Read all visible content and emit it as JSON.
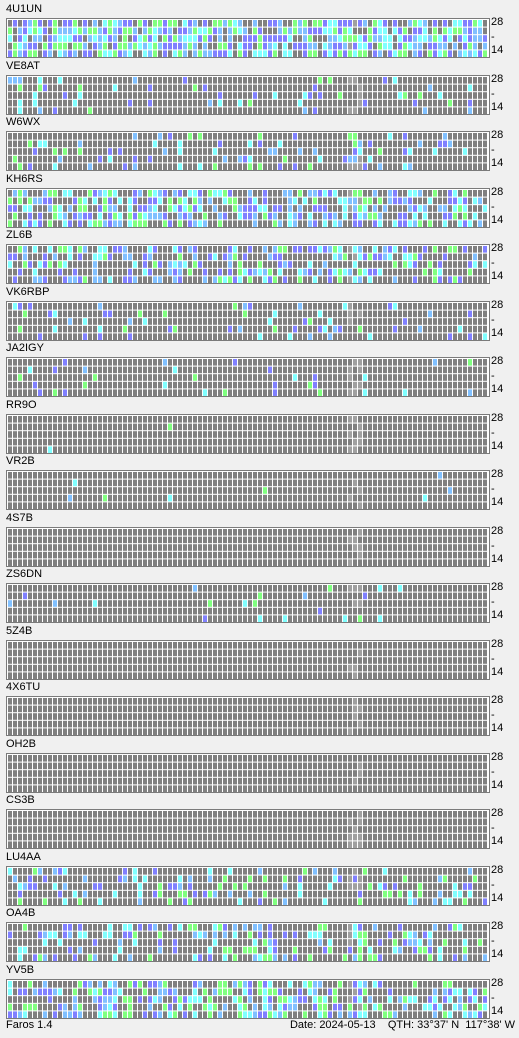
{
  "app": {
    "version_label": "Faros 1.4"
  },
  "status": {
    "date_label": "Date:",
    "date": "2024-05-13",
    "qth_label": "QTH:",
    "qth_lat": "33°37' N",
    "qth_lon": "117°38' W"
  },
  "axis": {
    "top": "28",
    "mid": "-",
    "bottom": "14"
  },
  "colors": {
    "no_signal": "#808080",
    "beacon_idle": "#a0a0a0",
    "weak": "#8080ff",
    "medium": "#80c0ff",
    "strong": "#80ffff",
    "very_strong": "#80ff80"
  },
  "stations": [
    {
      "call": "4U1UN",
      "activity": 0.75
    },
    {
      "call": "VE8AT",
      "activity": 0.12
    },
    {
      "call": "W6WX",
      "activity": 0.2
    },
    {
      "call": "KH6RS",
      "activity": 0.55
    },
    {
      "call": "ZL6B",
      "activity": 0.45
    },
    {
      "call": "VK6RBP",
      "activity": 0.15
    },
    {
      "call": "JA2IGY",
      "activity": 0.07
    },
    {
      "call": "RR9O",
      "activity": 0.01
    },
    {
      "call": "VR2B",
      "activity": 0.01
    },
    {
      "call": "4S7B",
      "activity": 0.0
    },
    {
      "call": "ZS6DN",
      "activity": 0.04
    },
    {
      "call": "5Z4B",
      "activity": 0.0
    },
    {
      "call": "4X6TU",
      "activity": 0.0
    },
    {
      "call": "OH2B",
      "activity": 0.0
    },
    {
      "call": "CS3B",
      "activity": 0.0
    },
    {
      "call": "LU4AA",
      "activity": 0.25
    },
    {
      "call": "OA4B",
      "activity": 0.35
    },
    {
      "call": "YV5B",
      "activity": 0.5
    }
  ]
}
